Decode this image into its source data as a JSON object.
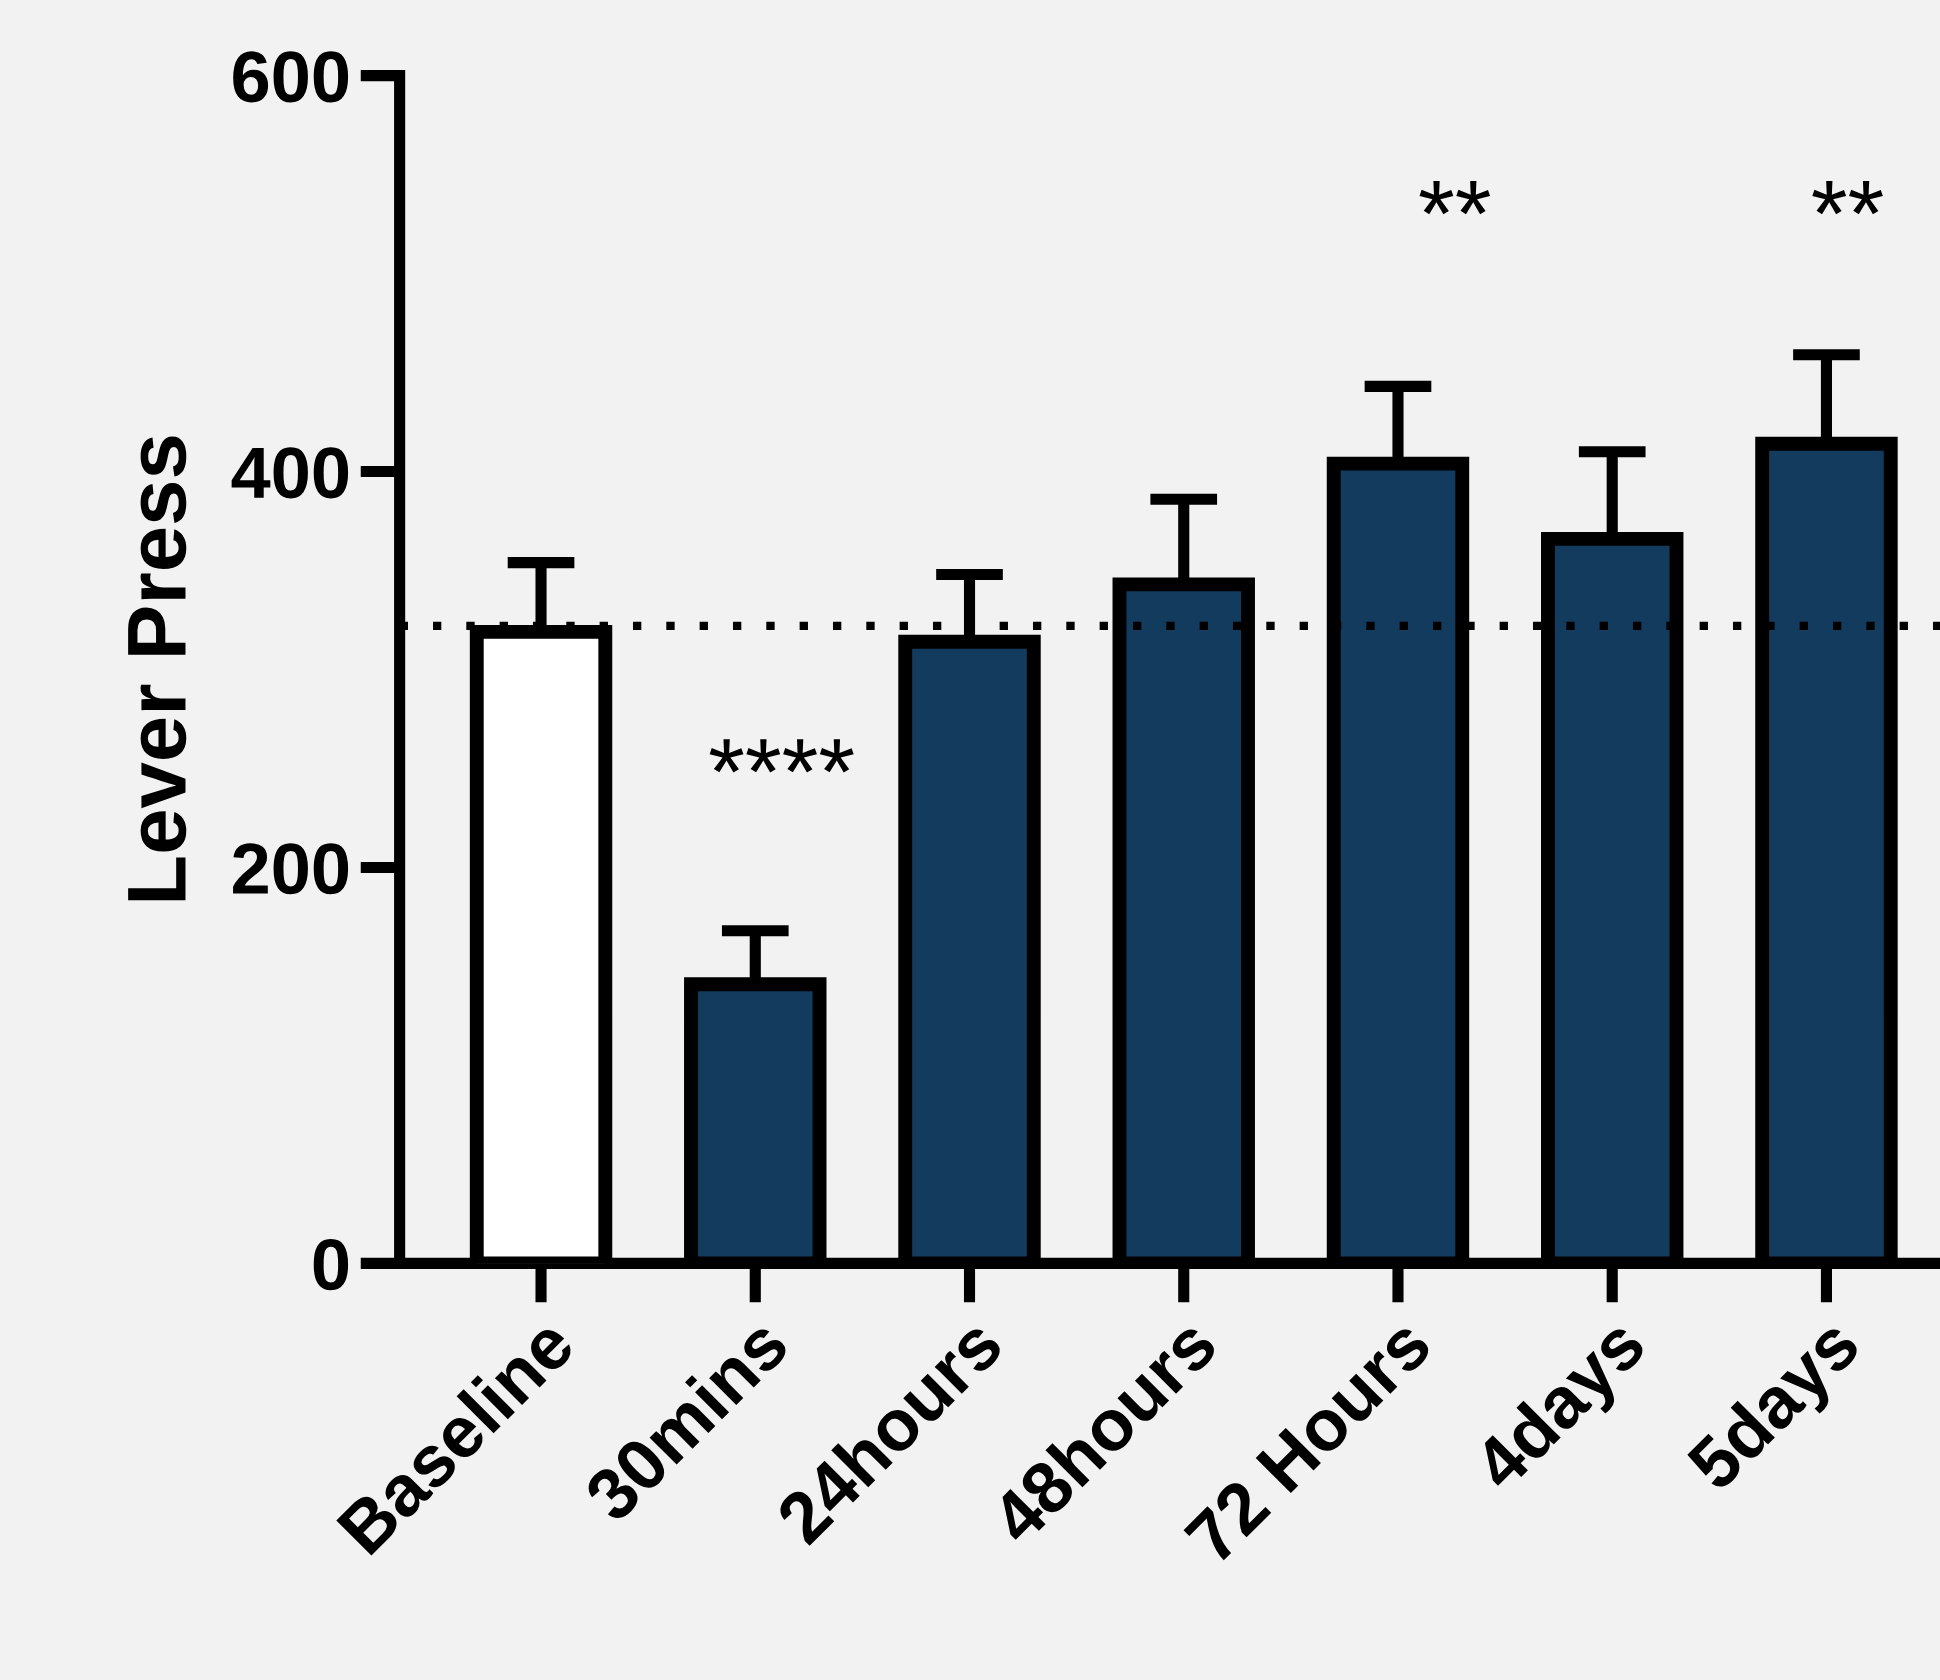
{
  "chart_data": {
    "type": "bar",
    "ylabel": "Lever Press",
    "categories": [
      "Baseline",
      "30mins",
      "24hours",
      "48hours",
      "72 Hours",
      "4days",
      "5days"
    ],
    "values": [
      319,
      141,
      314,
      343,
      404,
      366,
      414
    ],
    "colors": [
      "#ffffff",
      "#133b5e",
      "#133b5e",
      "#133b5e",
      "#133b5e",
      "#133b5e",
      "#133b5e"
    ],
    "errors": [
      [
        319,
        354
      ],
      [
        141,
        168
      ],
      [
        314,
        348
      ],
      [
        343,
        386
      ],
      [
        404,
        443
      ],
      [
        366,
        410
      ],
      [
        414,
        459
      ]
    ],
    "ylim": [
      0,
      600
    ],
    "yticks": [
      0,
      200,
      400,
      600
    ],
    "grid": false,
    "legend": false,
    "ref_lines": [
      {
        "axis": "y",
        "value": 322,
        "color": "#000000",
        "line_style": "dotted"
      }
    ],
    "annotations": [
      "****",
      "**",
      "**"
    ]
  }
}
